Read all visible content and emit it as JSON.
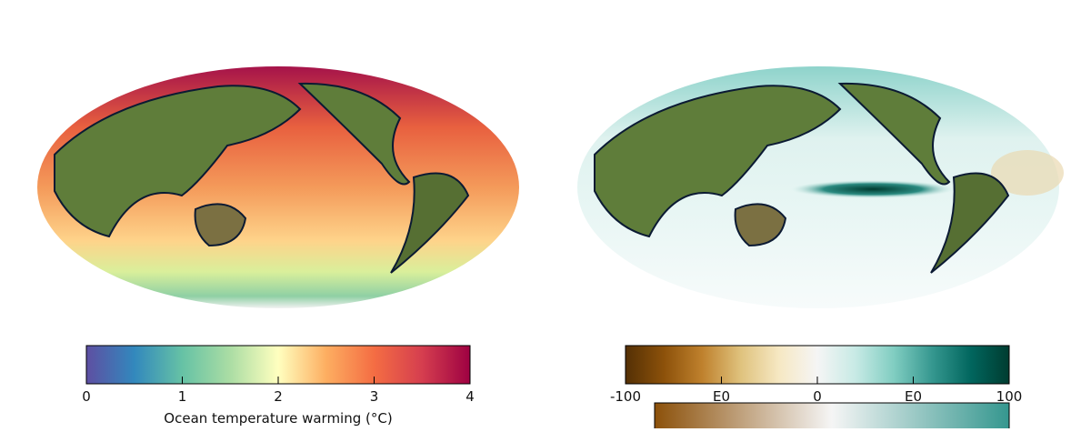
{
  "colorbars": [
    {
      "lim": [
        0,
        4
      ],
      "ticks": [
        0,
        1,
        2,
        3,
        4
      ],
      "label": "Ocean temperature warming (°C)",
      "colors": [
        "#5e4fa2",
        "#3288bd",
        "#66c2a5",
        "#abdda4",
        "#ffffbf",
        "#fdae61",
        "#f46d43",
        "#d53e4f",
        "#9e0142"
      ]
    },
    {
      "lim": [
        -100,
        100
      ],
      "ticks": [
        -100,
        {
          "value": -50,
          "label": "E0"
        },
        0,
        {
          "value": 50,
          "label": "E0"
        },
        100
      ],
      "colors": [
        "#543005",
        "#8c510a",
        "#bf812d",
        "#dfc27d",
        "#f6e8c3",
        "#f5f5f5",
        "#c7eae5",
        "#80cdc1",
        "#35978f",
        "#01665e",
        "#003c30"
      ]
    }
  ]
}
